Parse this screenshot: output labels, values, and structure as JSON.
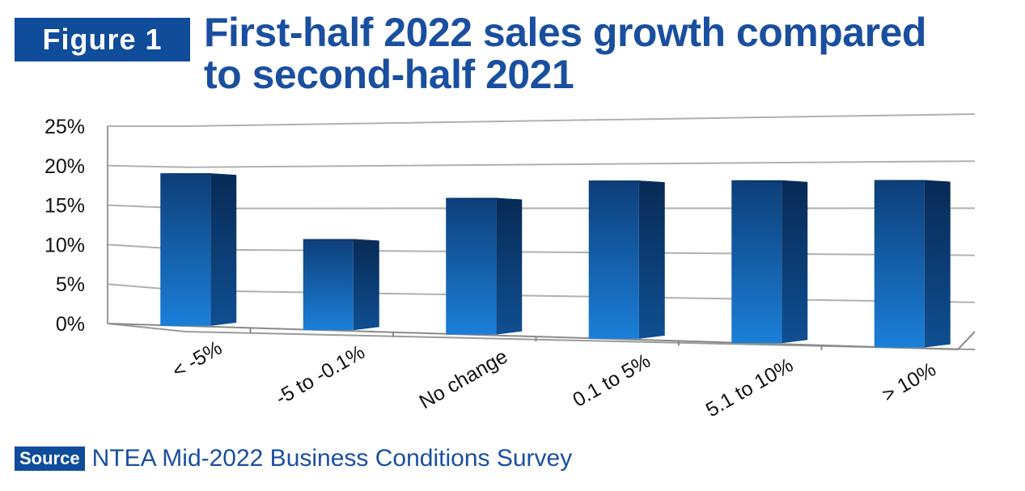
{
  "figure_label": "Figure 1",
  "title_line1": "First-half 2022 sales growth compared",
  "title_line2": "to second-half 2021",
  "source_label": "Source",
  "source_text": "NTEA Mid-2022 Business Conditions Survey",
  "colors": {
    "brand": "#0f4c9a",
    "title": "#1a4f9f",
    "bar_top": "#0d3e79",
    "bar_bottom": "#1b7fd8",
    "bar_side": "#0a2f5e"
  },
  "chart_data": {
    "type": "bar",
    "categories": [
      "< -5%",
      "-5 to -0.1%",
      "No change",
      "0.1 to 5%",
      "5.1 to 10%",
      "> 10%"
    ],
    "values": [
      19,
      11,
      16,
      18,
      18,
      18
    ],
    "ylim": [
      0,
      25
    ],
    "yticks": [
      "0%",
      "5%",
      "10%",
      "15%",
      "20%",
      "25%"
    ],
    "grid": true,
    "legend": "none"
  }
}
